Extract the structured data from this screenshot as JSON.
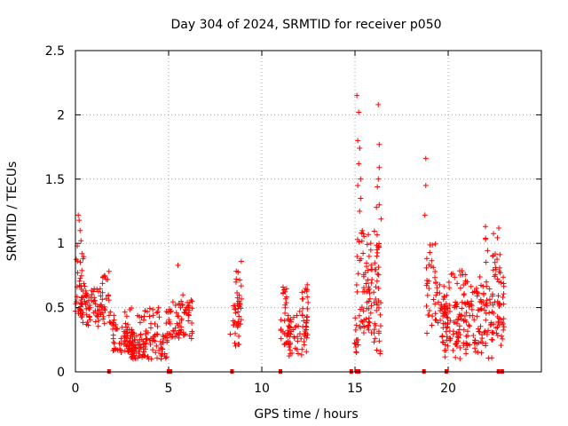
{
  "chart_data": {
    "type": "scatter",
    "title": "Day 304 of 2024, SRMTID for receiver p050",
    "xlabel": "GPS time / hours",
    "ylabel": "SRMTID / TECUs",
    "xlim": [
      0,
      25
    ],
    "ylim": [
      0,
      2.5
    ],
    "xticks": [
      0,
      5,
      10,
      15,
      20
    ],
    "xtick_labels": [
      "0",
      "5",
      "10",
      "15",
      "20"
    ],
    "yticks": [
      0,
      0.5,
      1,
      1.5,
      2,
      2.5
    ],
    "ytick_labels": [
      "0",
      "0.5",
      "1",
      "1.5",
      "2",
      "2.5"
    ],
    "grid": true,
    "marker": "plus",
    "color": "#ff0000",
    "clusters": [
      {
        "x": [
          0.0,
          0.5
        ],
        "y": [
          0.45,
          0.9
        ],
        "n": 40
      },
      {
        "x": [
          0.3,
          1.6
        ],
        "y": [
          0.35,
          0.65
        ],
        "n": 70
      },
      {
        "x": [
          1.4,
          1.8
        ],
        "y": [
          0.55,
          0.8
        ],
        "n": 12
      },
      {
        "x": [
          1.8,
          2.2
        ],
        "y": [
          0.3,
          0.5
        ],
        "n": 12
      },
      {
        "x": [
          2.0,
          3.2
        ],
        "y": [
          0.15,
          0.35
        ],
        "n": 55
      },
      {
        "x": [
          2.8,
          5.0
        ],
        "y": [
          0.1,
          0.3
        ],
        "n": 110
      },
      {
        "x": [
          2.6,
          5.0
        ],
        "y": [
          0.3,
          0.5
        ],
        "n": 35
      },
      {
        "x": [
          5.0,
          6.3
        ],
        "y": [
          0.25,
          0.55
        ],
        "n": 55
      },
      {
        "x": [
          5.5,
          6.3
        ],
        "y": [
          0.45,
          0.65
        ],
        "n": 14
      },
      {
        "x": [
          8.3,
          8.9
        ],
        "y": [
          0.2,
          0.55
        ],
        "n": 35
      },
      {
        "x": [
          8.6,
          9.0
        ],
        "y": [
          0.55,
          0.8
        ],
        "n": 10
      },
      {
        "x": [
          11.0,
          11.6
        ],
        "y": [
          0.2,
          0.45
        ],
        "n": 22
      },
      {
        "x": [
          11.1,
          11.4
        ],
        "y": [
          0.45,
          0.7
        ],
        "n": 12
      },
      {
        "x": [
          11.4,
          12.5
        ],
        "y": [
          0.1,
          0.45
        ],
        "n": 55
      },
      {
        "x": [
          12.0,
          12.5
        ],
        "y": [
          0.4,
          0.7
        ],
        "n": 14
      },
      {
        "x": [
          14.8,
          15.2
        ],
        "y": [
          0.15,
          0.25
        ],
        "n": 10
      },
      {
        "x": [
          15.0,
          16.4
        ],
        "y": [
          0.3,
          0.7
        ],
        "n": 60
      },
      {
        "x": [
          15.1,
          16.3
        ],
        "y": [
          0.7,
          1.1
        ],
        "n": 45
      },
      {
        "x": [
          16.0,
          16.4
        ],
        "y": [
          0.1,
          0.4
        ],
        "n": 8
      },
      {
        "x": [
          18.8,
          20.0
        ],
        "y": [
          0.3,
          0.7
        ],
        "n": 45
      },
      {
        "x": [
          18.8,
          19.4
        ],
        "y": [
          0.7,
          1.05
        ],
        "n": 14
      },
      {
        "x": [
          19.6,
          23.0
        ],
        "y": [
          0.2,
          0.55
        ],
        "n": 150
      },
      {
        "x": [
          20.0,
          23.0
        ],
        "y": [
          0.5,
          0.8
        ],
        "n": 60
      },
      {
        "x": [
          22.0,
          22.8
        ],
        "y": [
          0.75,
          1.15
        ],
        "n": 18
      },
      {
        "x": [
          19.8,
          22.9
        ],
        "y": [
          0.1,
          0.25
        ],
        "n": 25
      }
    ],
    "outliers": [
      {
        "x": 0.15,
        "y": 1.22
      },
      {
        "x": 0.2,
        "y": 1.18
      },
      {
        "x": 0.25,
        "y": 1.1
      },
      {
        "x": 0.3,
        "y": 1.02
      },
      {
        "x": 0.1,
        "y": 0.98
      },
      {
        "x": 0.35,
        "y": 0.92
      },
      {
        "x": 5.5,
        "y": 0.83
      },
      {
        "x": 8.9,
        "y": 0.86
      },
      {
        "x": 15.1,
        "y": 2.15
      },
      {
        "x": 15.2,
        "y": 2.02
      },
      {
        "x": 15.15,
        "y": 1.8
      },
      {
        "x": 15.25,
        "y": 1.74
      },
      {
        "x": 15.2,
        "y": 1.62
      },
      {
        "x": 15.3,
        "y": 1.5
      },
      {
        "x": 15.15,
        "y": 1.45
      },
      {
        "x": 15.3,
        "y": 1.35
      },
      {
        "x": 15.25,
        "y": 1.25
      },
      {
        "x": 16.25,
        "y": 2.08
      },
      {
        "x": 16.3,
        "y": 1.77
      },
      {
        "x": 16.3,
        "y": 1.59
      },
      {
        "x": 16.25,
        "y": 1.5
      },
      {
        "x": 16.2,
        "y": 1.44
      },
      {
        "x": 16.3,
        "y": 1.3
      },
      {
        "x": 16.15,
        "y": 1.28
      },
      {
        "x": 16.4,
        "y": 1.19
      },
      {
        "x": 18.8,
        "y": 1.66
      },
      {
        "x": 18.8,
        "y": 1.45
      },
      {
        "x": 18.75,
        "y": 1.22
      }
    ],
    "zero_points_x": [
      1.8,
      5.0,
      5.1,
      8.4,
      11.0,
      14.8,
      15.1,
      15.2,
      18.7,
      19.9,
      22.7,
      22.9
    ]
  }
}
